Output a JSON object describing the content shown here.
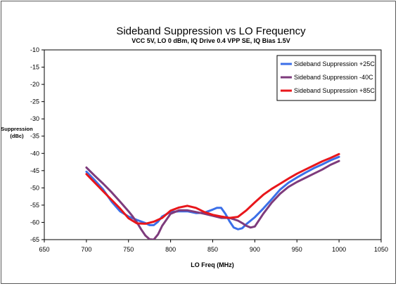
{
  "chart_data": {
    "type": "line",
    "title": "Sideband Suppression vs LO Frequency",
    "subtitle": "VCC 5V, LO 0 dBm, IQ Drive 0.4 VPP SE, IQ Bias 1.5V",
    "xlabel": "LO Freq (MHz)",
    "ylabel_line1": "Suppression",
    "ylabel_line2": "(dBc)",
    "xlim": [
      650,
      1050
    ],
    "ylim": [
      -65,
      -10
    ],
    "xticks": [
      650,
      700,
      750,
      800,
      850,
      900,
      950,
      1000,
      1050
    ],
    "yticks": [
      -10,
      -15,
      -20,
      -25,
      -30,
      -35,
      -40,
      -45,
      -50,
      -55,
      -60,
      -65
    ],
    "grid": false,
    "legend_position": "top-right",
    "series": [
      {
        "name": "Sideband Suppression +25C",
        "color": "#3b6fe8",
        "x": [
          700,
          710,
          720,
          730,
          740,
          750,
          760,
          770,
          775,
          780,
          785,
          790,
          800,
          810,
          820,
          830,
          840,
          850,
          855,
          860,
          865,
          870,
          875,
          880,
          885,
          890,
          895,
          900,
          910,
          920,
          930,
          940,
          950,
          960,
          970,
          980,
          990,
          1000
        ],
        "y": [
          -45.3,
          -47.8,
          -50.5,
          -54,
          -56.8,
          -58.3,
          -59.3,
          -60.2,
          -60.8,
          -60.8,
          -59.8,
          -58.3,
          -57,
          -56.8,
          -56.8,
          -57.3,
          -57.2,
          -56.3,
          -55.8,
          -55.8,
          -57.5,
          -59.7,
          -61.5,
          -62,
          -61.7,
          -60.5,
          -59.5,
          -58.5,
          -56,
          -53.3,
          -50.5,
          -48.5,
          -47,
          -45.6,
          -44.3,
          -43.2,
          -42,
          -41
        ]
      },
      {
        "name": "Sideband Suppression -40C",
        "color": "#7e3b7c",
        "x": [
          700,
          710,
          720,
          730,
          740,
          750,
          755,
          760,
          765,
          770,
          775,
          780,
          785,
          790,
          800,
          810,
          820,
          830,
          840,
          850,
          860,
          870,
          880,
          885,
          890,
          895,
          900,
          910,
          920,
          930,
          940,
          950,
          960,
          970,
          980,
          990,
          1000
        ],
        "y": [
          -44.1,
          -46.5,
          -48.8,
          -51.3,
          -54,
          -56.8,
          -58.3,
          -60,
          -62,
          -63.8,
          -64.9,
          -65,
          -63.5,
          -61,
          -57.5,
          -56.5,
          -56.5,
          -57,
          -57.5,
          -58.1,
          -58.7,
          -58.7,
          -59.5,
          -60.2,
          -61,
          -61.5,
          -61.2,
          -57.5,
          -54.3,
          -51.7,
          -49.7,
          -48.3,
          -47.1,
          -45.9,
          -44.7,
          -43.3,
          -42.2
        ]
      },
      {
        "name": "Sideband Suppression +85C",
        "color": "#e8161b",
        "x": [
          700,
          710,
          720,
          730,
          740,
          750,
          760,
          770,
          780,
          790,
          800,
          810,
          820,
          830,
          840,
          850,
          860,
          870,
          880,
          890,
          900,
          910,
          920,
          930,
          940,
          950,
          960,
          970,
          980,
          990,
          1000
        ],
        "y": [
          -46,
          -48.5,
          -51,
          -53.5,
          -56,
          -58.8,
          -60.3,
          -60.4,
          -59.8,
          -58.7,
          -56.6,
          -55.7,
          -55.2,
          -55.8,
          -57,
          -57.8,
          -58.3,
          -58.7,
          -58.4,
          -56.5,
          -54.2,
          -52,
          -50.3,
          -48.8,
          -47.3,
          -45.9,
          -44.7,
          -43.5,
          -42.3,
          -41.3,
          -40.2
        ]
      }
    ]
  }
}
